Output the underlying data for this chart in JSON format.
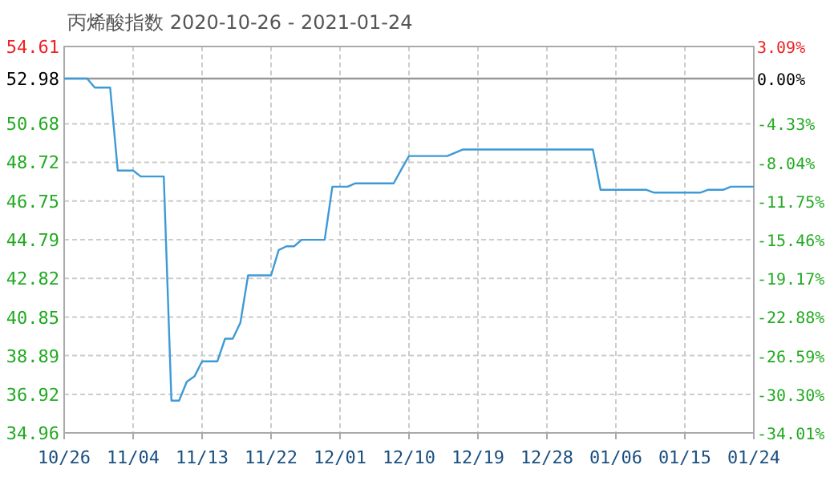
{
  "chart_data": {
    "type": "line",
    "title": "丙烯酸指数 2020-10-26 - 2021-01-24",
    "x": [
      "2020-10-26",
      "2020-10-29",
      "2020-10-30",
      "2020-11-01",
      "2020-11-02",
      "2020-11-04",
      "2020-11-05",
      "2020-11-08",
      "2020-11-09",
      "2020-11-10",
      "2020-11-11",
      "2020-11-12",
      "2020-11-13",
      "2020-11-15",
      "2020-11-16",
      "2020-11-17",
      "2020-11-18",
      "2020-11-19",
      "2020-11-22",
      "2020-11-23",
      "2020-11-24",
      "2020-11-25",
      "2020-11-26",
      "2020-11-29",
      "2020-11-30",
      "2020-12-02",
      "2020-12-03",
      "2020-12-08",
      "2020-12-09",
      "2020-12-10",
      "2020-12-15",
      "2020-12-17",
      "2021-01-03",
      "2021-01-04",
      "2021-01-10",
      "2021-01-11",
      "2021-01-17",
      "2021-01-18",
      "2021-01-20",
      "2021-01-21",
      "2021-01-24"
    ],
    "series": [
      {
        "color": "#3d9ad6",
        "values": [
          52.98,
          52.98,
          52.52,
          52.52,
          48.3,
          48.3,
          48.0,
          48.0,
          36.6,
          36.6,
          37.56,
          37.83,
          38.6,
          38.6,
          39.75,
          39.75,
          40.57,
          42.97,
          42.97,
          44.26,
          44.45,
          44.45,
          44.78,
          44.78,
          47.48,
          47.48,
          47.65,
          47.65,
          48.36,
          49.04,
          49.04,
          49.37,
          49.37,
          47.32,
          47.32,
          47.18,
          47.18,
          47.32,
          47.32,
          47.48,
          47.48
        ]
      }
    ],
    "xlim": [
      "2020-10-26",
      "2021-01-24"
    ],
    "xticks": [
      {
        "value": "2020-10-26",
        "label": "10/26"
      },
      {
        "value": "2020-11-04",
        "label": "11/04"
      },
      {
        "value": "2020-11-13",
        "label": "11/13"
      },
      {
        "value": "2020-11-22",
        "label": "11/22"
      },
      {
        "value": "2020-12-01",
        "label": "12/01"
      },
      {
        "value": "2020-12-10",
        "label": "12/10"
      },
      {
        "value": "2020-12-19",
        "label": "12/19"
      },
      {
        "value": "2020-12-28",
        "label": "12/28"
      },
      {
        "value": "2021-01-06",
        "label": "01/06"
      },
      {
        "value": "2021-01-15",
        "label": "01/15"
      },
      {
        "value": "2021-01-24",
        "label": "01/24"
      }
    ],
    "ylim": [
      34.96,
      54.61
    ],
    "yticks": [
      {
        "value": 34.96,
        "label": "34.96"
      },
      {
        "value": 36.92,
        "label": "36.92"
      },
      {
        "value": 38.89,
        "label": "38.89"
      },
      {
        "value": 40.85,
        "label": "40.85"
      },
      {
        "value": 42.82,
        "label": "42.82"
      },
      {
        "value": 44.79,
        "label": "44.79"
      },
      {
        "value": 46.75,
        "label": "46.75"
      },
      {
        "value": 48.72,
        "label": "48.72"
      },
      {
        "value": 50.68,
        "label": "50.68"
      },
      {
        "value": 52.98,
        "label": "52.98"
      },
      {
        "value": 54.61,
        "label": "54.61"
      }
    ],
    "y2lim": [
      -34.01,
      3.09
    ],
    "y2ticks": [
      {
        "value": -34.01,
        "label": "-34.01%"
      },
      {
        "value": -30.3,
        "label": "-30.30%"
      },
      {
        "value": -26.59,
        "label": "-26.59%"
      },
      {
        "value": -22.88,
        "label": "-22.88%"
      },
      {
        "value": -19.17,
        "label": "-19.17%"
      },
      {
        "value": -15.46,
        "label": "-15.46%"
      },
      {
        "value": -11.75,
        "label": "-11.75%"
      },
      {
        "value": -8.04,
        "label": "-8.04%"
      },
      {
        "value": -4.33,
        "label": "-4.33%"
      },
      {
        "value": 0,
        "label": "0.00%"
      },
      {
        "value": 3.09,
        "label": "3.09%"
      }
    ],
    "ref_lines": [
      {
        "axis": "y",
        "value": 52.98,
        "color": "#999999"
      }
    ],
    "grid": true
  }
}
